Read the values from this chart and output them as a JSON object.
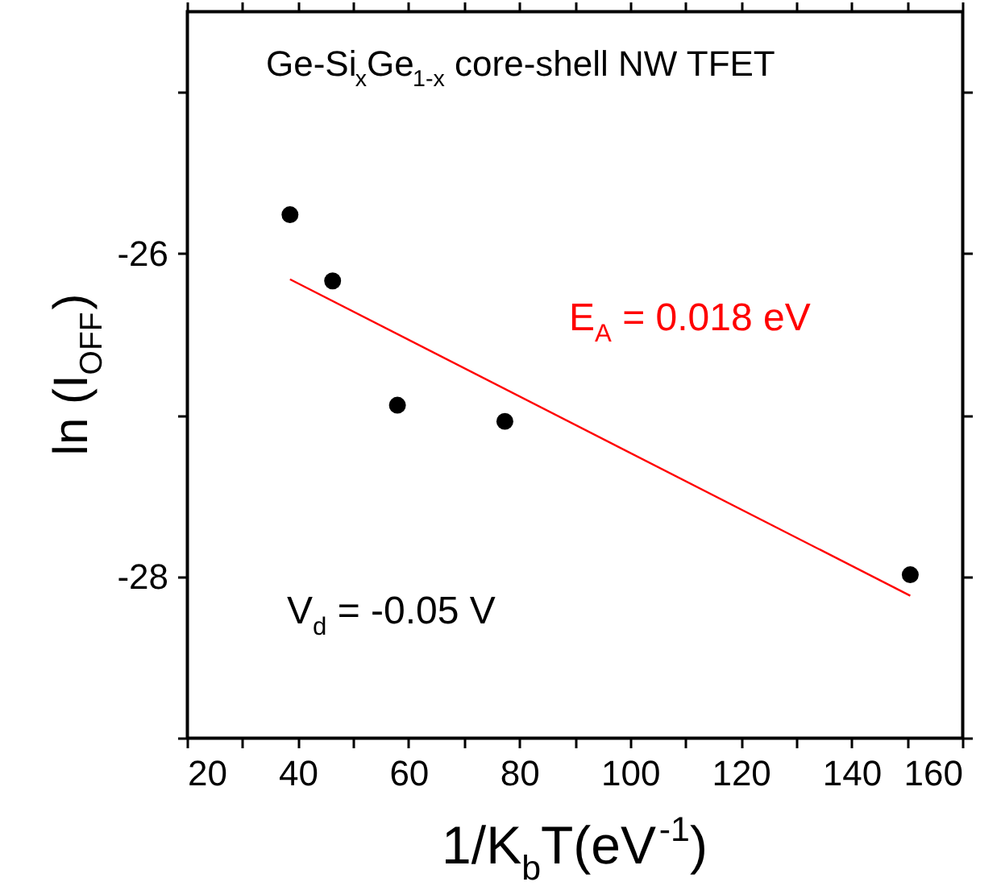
{
  "chart_data": {
    "type": "scatter",
    "xlabel": "1/K$_{b}$T(eV$^{-1}$)",
    "ylabel": "ln (I$_{OFF}$)",
    "annotations": [
      "Ge-Si$_{x}$Ge$_{1-x}$ core-shell NW TFET",
      "E$_{A}$ = 0.018 eV",
      "V$_{d}$ = -0.05 V"
    ],
    "series": [
      {
        "x": [
          38.6,
          46.3,
          58.0,
          77.4,
          150.6
        ],
        "values": [
          -25.76,
          -26.17,
          -26.94,
          -27.04,
          -27.99
        ],
        "color": "#000000",
        "marker": "circle"
      },
      {
        "type": "line",
        "x": [
          38.6,
          150.6
        ],
        "values": [
          -26.16,
          -28.12
        ],
        "color": "#ff0000"
      }
    ],
    "xlim": [
      20,
      160
    ],
    "ylim": [
      -29,
      -24.5
    ],
    "xticks": [
      20,
      {
        "value": 30,
        "label": null
      },
      40,
      {
        "value": 50,
        "label": null
      },
      60,
      {
        "value": 70,
        "label": null
      },
      80,
      {
        "value": 90,
        "label": null
      },
      100,
      {
        "value": 110,
        "label": null
      },
      120,
      {
        "value": 130,
        "label": null
      },
      140,
      {
        "value": 150,
        "label": null
      },
      160
    ],
    "yticks": [
      {
        "value": -29,
        "label": null
      },
      -28,
      {
        "value": -27,
        "label": null
      },
      -26,
      {
        "value": -25,
        "label": null
      }
    ],
    "grid": false
  }
}
